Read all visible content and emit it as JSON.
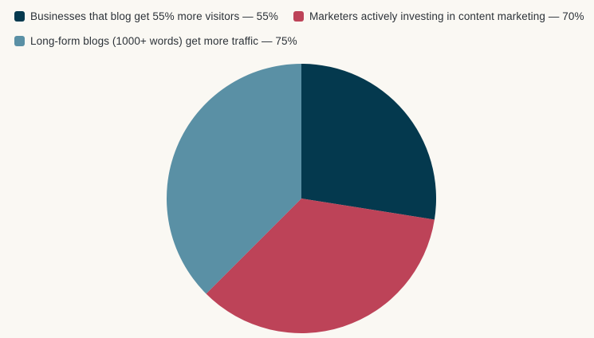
{
  "background_color": "#faf8f3",
  "text_color": "#2c3238",
  "chart_data": {
    "type": "pie",
    "title": "",
    "legend_position": "top-left",
    "start_angle_deg": -90,
    "direction": "clockwise",
    "total": 200,
    "slices": [
      {
        "label": "Businesses that blog get 55% more visitors",
        "value": 55,
        "percent_of_pie": 27.5,
        "display": "Businesses that blog get 55% more visitors — 55%",
        "color": "#04394e"
      },
      {
        "label": "Marketers actively investing in content marketing",
        "value": 70,
        "percent_of_pie": 35,
        "display": "Marketers actively investing in content marketing — 70%",
        "color": "#bd4358"
      },
      {
        "label": "Long-form blogs (1000+ words) get more traffic",
        "value": 75,
        "percent_of_pie": 37.5,
        "display": "Long-form blogs (1000+ words) get more traffic — 75%",
        "color": "#5a90a5"
      }
    ]
  }
}
